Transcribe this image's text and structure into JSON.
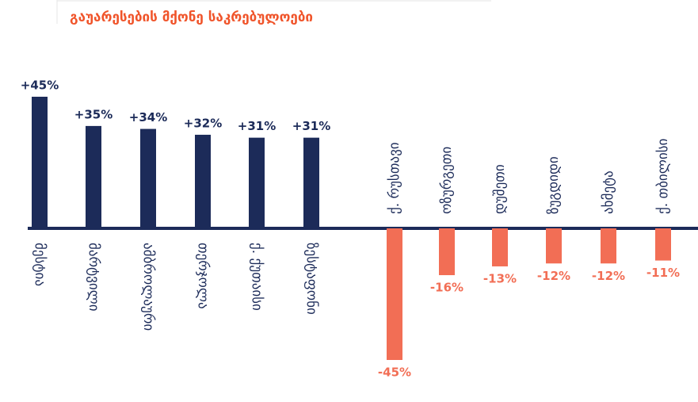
{
  "chart_data": {
    "type": "bar",
    "title": "გაუარესების მქონე საკრებულოები",
    "categories": [
      "მესტია",
      "მარტვილი",
      "ამბროლაური",
      "თერჯოლა",
      "ქ. ქუთაისი",
      "ზესტაფონი",
      "ქ. რუსთავი",
      "ოზურგეთი",
      "დუშეთი",
      "ზუგდიდი",
      "ახმეტა",
      "ქ. თბილისი"
    ],
    "values": [
      45,
      35,
      34,
      32,
      31,
      31,
      -45,
      -16,
      -13,
      -12,
      -12,
      -11
    ],
    "value_labels": [
      "+45%",
      "+35%",
      "+34%",
      "+32%",
      "+31%",
      "+31%",
      "-45%",
      "-16%",
      "-13%",
      "-12%",
      "-12%",
      "-11%"
    ],
    "positive_color": "#1c2b59",
    "negative_color": "#f26e55",
    "title_color": "#f0542a"
  }
}
